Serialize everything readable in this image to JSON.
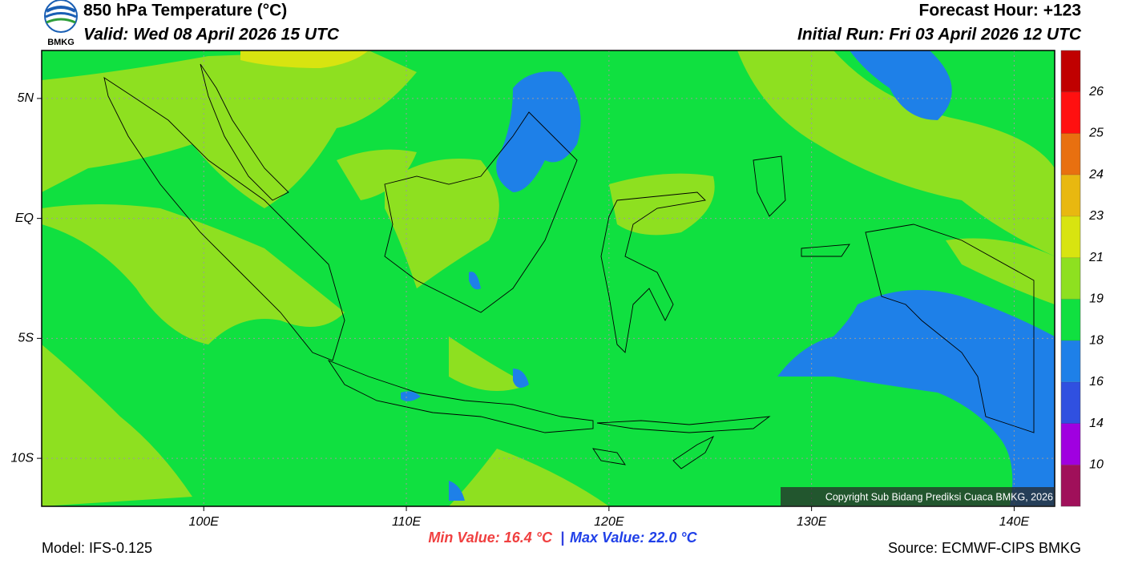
{
  "header": {
    "logo": "BMKG",
    "title": "850 hPa Temperature (°C)",
    "valid": "Valid: Wed 08 April 2026 15 UTC",
    "forecast_hour": "Forecast Hour: +123",
    "initial_run": "Initial Run: Fri 03 April 2026 12 UTC"
  },
  "map": {
    "xlim": [
      92,
      142
    ],
    "ylim": [
      -12,
      7
    ],
    "xticks": [
      {
        "value": 100,
        "label": "100E"
      },
      {
        "value": 110,
        "label": "110E"
      },
      {
        "value": 120,
        "label": "120E"
      },
      {
        "value": 130,
        "label": "130E"
      },
      {
        "value": 140,
        "label": "140E"
      }
    ],
    "yticks": [
      {
        "value": 5,
        "label": "5N"
      },
      {
        "value": 0,
        "label": "EQ"
      },
      {
        "value": -5,
        "label": "5S"
      },
      {
        "value": -10,
        "label": "10S"
      }
    ],
    "grid": true,
    "copyright": "Copyright Sub Bidang Prediksi Cuaca BMKG, 2026"
  },
  "colorbar": {
    "levels": [
      10,
      14,
      16,
      18,
      19,
      21,
      23,
      24,
      25,
      26
    ],
    "colors": [
      "#a0105a",
      "#a000e0",
      "#3050e0",
      "#1e80e8",
      "#10e040",
      "#8ee020",
      "#d8e410",
      "#e8b810",
      "#e87010",
      "#ff1010",
      "#c00000"
    ]
  },
  "footer": {
    "model": "Model: IFS-0.125",
    "min_value": "Min Value: 16.4 °C",
    "separator": "|",
    "max_value": "Max Value: 22.0 °C",
    "source": "Source: ECMWF-CIPS BMKG"
  }
}
